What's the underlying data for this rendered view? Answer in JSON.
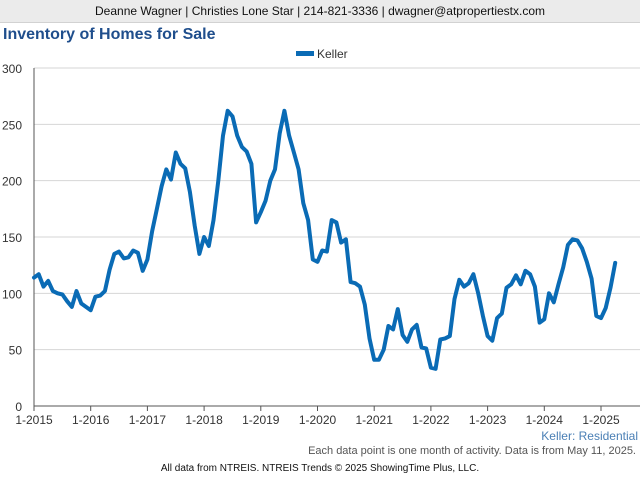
{
  "header": {
    "contact": "Deanne Wagner | Christies Lone Star | 214-821-3336 | dwagner@atpropertiestx.com"
  },
  "chart_data": {
    "type": "line",
    "title": "Inventory of Homes for Sale",
    "xlabel": "",
    "ylabel": "",
    "ylim": [
      0,
      300
    ],
    "yticks": [
      0,
      50,
      100,
      150,
      200,
      250,
      300
    ],
    "xticks": [
      "1-2015",
      "1-2016",
      "1-2017",
      "1-2018",
      "1-2019",
      "1-2020",
      "1-2021",
      "1-2022",
      "1-2023",
      "1-2024",
      "1-2025"
    ],
    "grid": true,
    "legend_position": "top-center",
    "subtitle_label": "Keller: Residential",
    "series": [
      {
        "name": "Keller",
        "color": "#0a6bb5",
        "start": "1-2015",
        "values": [
          114,
          117,
          106,
          111,
          102,
          100,
          99,
          93,
          88,
          102,
          91,
          88,
          85,
          97,
          98,
          102,
          121,
          135,
          137,
          131,
          132,
          138,
          136,
          120,
          130,
          155,
          175,
          195,
          210,
          201,
          225,
          215,
          211,
          190,
          160,
          135,
          150,
          142,
          165,
          200,
          240,
          262,
          257,
          240,
          230,
          226,
          215,
          163,
          172,
          182,
          200,
          210,
          242,
          262,
          240,
          225,
          210,
          180,
          165,
          130,
          128,
          138,
          137,
          165,
          163,
          145,
          148,
          110,
          109,
          106,
          90,
          60,
          41,
          41,
          50,
          71,
          68,
          86,
          63,
          57,
          68,
          72,
          52,
          51,
          34,
          33,
          59,
          60,
          62,
          95,
          112,
          106,
          109,
          117,
          100,
          80,
          62,
          58,
          78,
          82,
          105,
          108,
          116,
          108,
          120,
          117,
          106,
          74,
          77,
          100,
          92,
          108,
          123,
          143,
          148,
          147,
          140,
          128,
          113,
          80,
          78,
          87,
          105,
          127
        ]
      }
    ]
  },
  "note": "Each data point is one month of activity. Data is from May 11, 2025.",
  "footer": "All data from NTREIS. NTREIS Trends © 2025 ShowingTime Plus, LLC."
}
